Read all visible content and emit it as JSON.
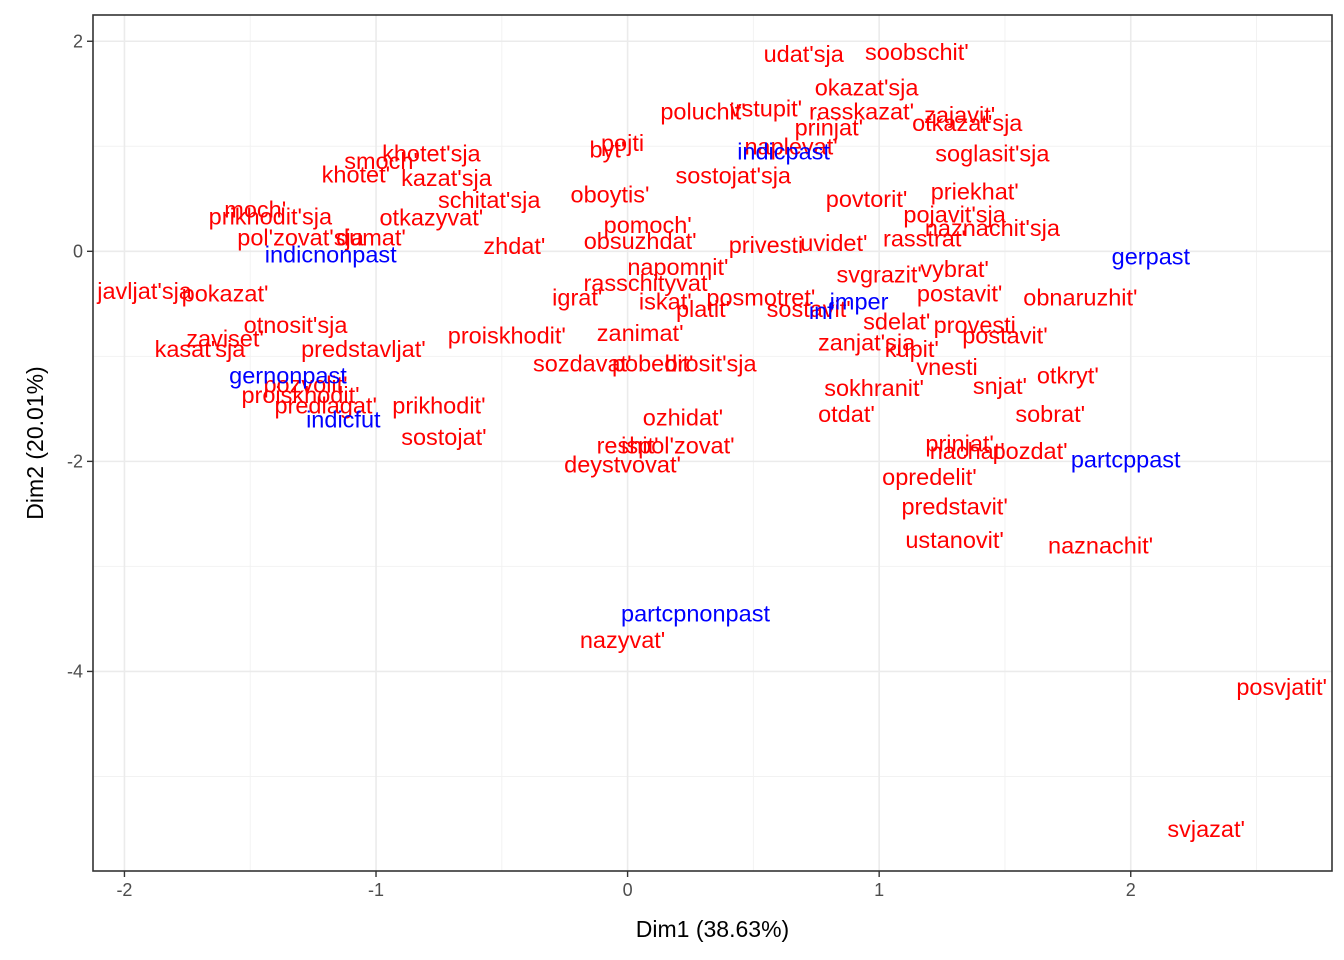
{
  "chart_data": {
    "type": "scatter",
    "title": "",
    "xlabel": "Dim1 (38.63%)",
    "ylabel": "Dim2 (20.01%)",
    "xlim": [
      -2.125,
      2.8
    ],
    "ylim": [
      -5.9,
      2.25
    ],
    "x_ticks": [
      -2,
      -1,
      0,
      1,
      2
    ],
    "y_ticks": [
      -4,
      -2,
      0,
      2
    ],
    "x_tick_labels": [
      "-2",
      "-1",
      "0",
      "1",
      "2"
    ],
    "y_tick_labels": [
      "-4",
      "-2",
      "0",
      "2"
    ],
    "grid": true,
    "legend": "none",
    "colors": {
      "verbs": "#ff0000",
      "forms": "#0000ff"
    },
    "series": [
      {
        "color": "#ff0000",
        "points": [
          {
            "label": "udat'sja",
            "x": 0.7,
            "y": 1.88
          },
          {
            "label": "soobschit'",
            "x": 1.15,
            "y": 1.9
          },
          {
            "label": "okazat'sja",
            "x": 0.95,
            "y": 1.56
          },
          {
            "label": "poluchit'",
            "x": 0.3,
            "y": 1.33
          },
          {
            "label": "vstupit'",
            "x": 0.55,
            "y": 1.36
          },
          {
            "label": "rasskazat'",
            "x": 0.93,
            "y": 1.33
          },
          {
            "label": "zajavit'",
            "x": 1.32,
            "y": 1.3
          },
          {
            "label": "otkazat'sja",
            "x": 1.35,
            "y": 1.22
          },
          {
            "label": "prinjat'",
            "x": 0.8,
            "y": 1.18
          },
          {
            "label": "naplevat'",
            "x": 0.65,
            "y": 1.0
          },
          {
            "label": "soglasit'sja",
            "x": 1.45,
            "y": 0.93
          },
          {
            "label": "pojti",
            "x": -0.02,
            "y": 1.03
          },
          {
            "label": "byt'",
            "x": -0.08,
            "y": 0.97
          },
          {
            "label": "khotet'sja",
            "x": -0.78,
            "y": 0.93
          },
          {
            "label": "smoch'",
            "x": -0.98,
            "y": 0.86
          },
          {
            "label": "khotet'",
            "x": -1.08,
            "y": 0.73
          },
          {
            "label": "kazat'sja",
            "x": -0.72,
            "y": 0.7
          },
          {
            "label": "schitat'sja",
            "x": -0.55,
            "y": 0.49
          },
          {
            "label": "oboytis'",
            "x": -0.07,
            "y": 0.54
          },
          {
            "label": "sostojat'sja",
            "x": 0.42,
            "y": 0.72
          },
          {
            "label": "priekhat'",
            "x": 1.38,
            "y": 0.57
          },
          {
            "label": "povtorit'",
            "x": 0.95,
            "y": 0.5
          },
          {
            "label": "moch'",
            "x": -1.48,
            "y": 0.4
          },
          {
            "label": "prikhodit'sja",
            "x": -1.42,
            "y": 0.33
          },
          {
            "label": "otkazyvat'",
            "x": -0.78,
            "y": 0.32
          },
          {
            "label": "pomoch'",
            "x": 0.08,
            "y": 0.25
          },
          {
            "label": "pojavit'sja",
            "x": 1.3,
            "y": 0.35
          },
          {
            "label": "pol'zovat'sja",
            "x": -1.3,
            "y": 0.13
          },
          {
            "label": "dumat'",
            "x": -1.02,
            "y": 0.13
          },
          {
            "label": "zhdat'",
            "x": -0.45,
            "y": 0.05
          },
          {
            "label": "obsuzhdat'",
            "x": 0.05,
            "y": 0.1
          },
          {
            "label": "privesti",
            "x": 0.55,
            "y": 0.06
          },
          {
            "label": "uvidet'",
            "x": 0.82,
            "y": 0.08
          },
          {
            "label": "rasstrat'",
            "x": 1.18,
            "y": 0.12
          },
          {
            "label": "naznachit'sja",
            "x": 1.45,
            "y": 0.22
          },
          {
            "label": "napomnit'",
            "x": 0.2,
            "y": -0.15
          },
          {
            "label": "rasschityvat'",
            "x": 0.08,
            "y": -0.3
          },
          {
            "label": "vybrat'",
            "x": 1.3,
            "y": -0.17
          },
          {
            "label": "svgrazit'",
            "x": 1.0,
            "y": -0.22
          },
          {
            "label": "postavit'",
            "x": 1.32,
            "y": -0.4
          },
          {
            "label": "obnaruzhit'",
            "x": 1.8,
            "y": -0.44
          },
          {
            "label": "pokazat'",
            "x": -1.6,
            "y": -0.4
          },
          {
            "label": "javljat'sja",
            "x": -1.92,
            "y": -0.38
          },
          {
            "label": "otnosit'sja",
            "x": -1.32,
            "y": -0.7
          },
          {
            "label": "zaviset'",
            "x": -1.6,
            "y": -0.83
          },
          {
            "label": "kasat'sja",
            "x": -1.7,
            "y": -0.93
          },
          {
            "label": "predstavljat'",
            "x": -1.05,
            "y": -0.93
          },
          {
            "label": "proiskhodit'",
            "x": -0.48,
            "y": -0.8
          },
          {
            "label": "igrat'",
            "x": -0.2,
            "y": -0.44
          },
          {
            "label": "iskat'",
            "x": 0.15,
            "y": -0.48
          },
          {
            "label": "posmotret'",
            "x": 0.53,
            "y": -0.44
          },
          {
            "label": "sostavit'",
            "x": 0.72,
            "y": -0.55
          },
          {
            "label": "platit'",
            "x": 0.3,
            "y": -0.55
          },
          {
            "label": "zanimat'",
            "x": 0.05,
            "y": -0.78
          },
          {
            "label": "sozdavat'",
            "x": -0.18,
            "y": -1.07
          },
          {
            "label": "pobedit'",
            "x": 0.1,
            "y": -1.07
          },
          {
            "label": "brosit'sja",
            "x": 0.33,
            "y": -1.07
          },
          {
            "label": "sdelat'",
            "x": 1.07,
            "y": -0.67
          },
          {
            "label": "provesti",
            "x": 1.38,
            "y": -0.7
          },
          {
            "label": "postavit'",
            "x": 1.5,
            "y": -0.8
          },
          {
            "label": "zanjat'sja",
            "x": 0.95,
            "y": -0.87
          },
          {
            "label": "kupit'",
            "x": 1.13,
            "y": -0.93
          },
          {
            "label": "vnesti",
            "x": 1.27,
            "y": -1.1
          },
          {
            "label": "otkryt'",
            "x": 1.75,
            "y": -1.18
          },
          {
            "label": "snjat'",
            "x": 1.48,
            "y": -1.28
          },
          {
            "label": "sokhranit'",
            "x": 0.98,
            "y": -1.3
          },
          {
            "label": "otdat'",
            "x": 0.87,
            "y": -1.55
          },
          {
            "label": "sobrat'",
            "x": 1.68,
            "y": -1.55
          },
          {
            "label": "pozvolit'",
            "x": -1.28,
            "y": -1.27
          },
          {
            "label": "proiskhodit'",
            "x": -1.3,
            "y": -1.37
          },
          {
            "label": "predlagat'",
            "x": -1.2,
            "y": -1.47
          },
          {
            "label": "prikhodit'",
            "x": -0.75,
            "y": -1.47
          },
          {
            "label": "sostojat'",
            "x": -0.73,
            "y": -1.77
          },
          {
            "label": "ozhidat'",
            "x": 0.22,
            "y": -1.58
          },
          {
            "label": "reshit'",
            "x": 0.0,
            "y": -1.85
          },
          {
            "label": "ispol'zovat'",
            "x": 0.2,
            "y": -1.85
          },
          {
            "label": "deystvovat'",
            "x": -0.02,
            "y": -2.03
          },
          {
            "label": "prinjat'",
            "x": 1.32,
            "y": -1.83
          },
          {
            "label": "nachat'",
            "x": 1.35,
            "y": -1.9
          },
          {
            "label": "pozdat'",
            "x": 1.6,
            "y": -1.9
          },
          {
            "label": "opredelit'",
            "x": 1.2,
            "y": -2.15
          },
          {
            "label": "predstavit'",
            "x": 1.3,
            "y": -2.43
          },
          {
            "label": "ustanovit'",
            "x": 1.3,
            "y": -2.75
          },
          {
            "label": "naznachit'",
            "x": 1.88,
            "y": -2.8
          },
          {
            "label": "nazyvat'",
            "x": -0.02,
            "y": -3.7
          },
          {
            "label": "posvjatit'",
            "x": 2.6,
            "y": -4.15
          },
          {
            "label": "svjazat'",
            "x": 2.3,
            "y": -5.5
          }
        ]
      },
      {
        "color": "#0000ff",
        "points": [
          {
            "label": "gerpast",
            "x": 2.08,
            "y": -0.05
          },
          {
            "label": "partcppast",
            "x": 1.98,
            "y": -1.98
          },
          {
            "label": "partcpnonpast",
            "x": 0.27,
            "y": -3.45
          },
          {
            "label": "gernonpast",
            "x": -1.35,
            "y": -1.18
          },
          {
            "label": "indicfut",
            "x": -1.13,
            "y": -1.6
          },
          {
            "label": "indicnonpast",
            "x": -1.18,
            "y": -0.03
          },
          {
            "label": "indicpast",
            "x": 0.62,
            "y": 0.95
          },
          {
            "label": "imper",
            "x": 0.92,
            "y": -0.48
          },
          {
            "label": "inf",
            "x": 0.77,
            "y": -0.57
          }
        ]
      }
    ]
  }
}
